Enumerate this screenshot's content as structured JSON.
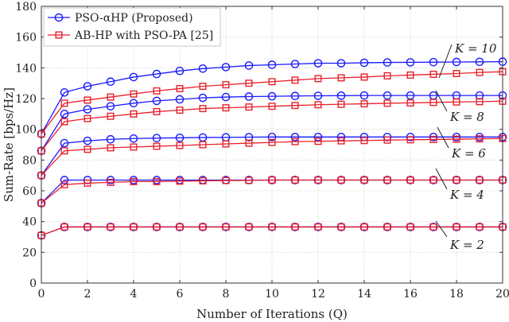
{
  "chart_data": {
    "type": "line",
    "xlabel": "Number of Iterations (Q)",
    "ylabel": "Sum-Rate [bps/Hz]",
    "xlim": [
      0,
      20
    ],
    "ylim": [
      0,
      180
    ],
    "xticks": [
      "0",
      "2",
      "4",
      "6",
      "8",
      "10",
      "12",
      "14",
      "16",
      "18",
      "20"
    ],
    "yticks": [
      "0",
      "20",
      "40",
      "60",
      "80",
      "100",
      "120",
      "140",
      "160",
      "180"
    ],
    "grid": true,
    "legend_position": "top-left",
    "x": [
      0,
      1,
      2,
      3,
      4,
      5,
      6,
      7,
      8,
      9,
      10,
      11,
      12,
      13,
      14,
      15,
      16,
      17,
      18,
      19,
      20
    ],
    "legend": {
      "proposed": "PSO-αHP (Proposed)",
      "baseline": "AB-HP with PSO-PA [25]"
    },
    "series": [
      {
        "name": "PSO-αHP (Proposed)",
        "group": "K = 10",
        "marker": "circle",
        "color": "#1a1aff",
        "values": [
          97,
          124,
          128,
          131,
          134,
          136,
          138,
          139.5,
          140.5,
          141.5,
          142,
          142.5,
          143,
          143,
          143.3,
          143.5,
          143.6,
          143.7,
          143.8,
          143.9,
          144
        ]
      },
      {
        "name": "AB-HP with PSO-PA [25]",
        "group": "K = 10",
        "marker": "square",
        "color": "#e8202a",
        "values": [
          97,
          117,
          119,
          121,
          123,
          125,
          126.5,
          128,
          129,
          130,
          131,
          132,
          133,
          133.5,
          134,
          134.8,
          135.3,
          135.8,
          136.3,
          137,
          137.5
        ]
      },
      {
        "name": "PSO-αHP (Proposed)",
        "group": "K = 8",
        "marker": "circle",
        "color": "#1a1aff",
        "values": [
          86,
          110,
          113,
          115,
          117,
          118.5,
          119.5,
          120.5,
          121,
          121.3,
          121.5,
          121.7,
          121.8,
          121.9,
          122,
          122,
          122,
          122,
          122,
          122,
          122
        ]
      },
      {
        "name": "AB-HP with PSO-PA [25]",
        "group": "K = 8",
        "marker": "square",
        "color": "#e8202a",
        "values": [
          86,
          105,
          107,
          108.5,
          110,
          111.5,
          112.5,
          113.5,
          114,
          114.5,
          115,
          115.5,
          116,
          116.3,
          116.6,
          117,
          117.2,
          117.5,
          117.8,
          118,
          118.3
        ]
      },
      {
        "name": "PSO-αHP (Proposed)",
        "group": "K = 6",
        "marker": "circle",
        "color": "#1a1aff",
        "values": [
          70,
          91,
          92.5,
          93.5,
          94,
          94.3,
          94.5,
          94.7,
          94.8,
          94.9,
          95,
          95,
          95,
          95,
          95,
          95,
          95,
          95,
          95,
          95,
          95
        ]
      },
      {
        "name": "AB-HP with PSO-PA [25]",
        "group": "K = 6",
        "marker": "square",
        "color": "#e8202a",
        "values": [
          70,
          86,
          87,
          88,
          88.5,
          89,
          89.5,
          90,
          90.5,
          91,
          91.5,
          92,
          92.2,
          92.5,
          92.7,
          93,
          93.2,
          93.4,
          93.6,
          93.8,
          94
        ]
      },
      {
        "name": "PSO-αHP (Proposed)",
        "group": "K = 4",
        "marker": "circle",
        "color": "#1a1aff",
        "values": [
          52,
          67,
          67,
          67,
          67,
          67,
          67,
          67,
          67,
          67,
          67,
          67,
          67,
          67,
          67,
          67,
          67,
          67,
          67,
          67,
          67
        ]
      },
      {
        "name": "AB-HP with PSO-PA [25]",
        "group": "K = 4",
        "marker": "square",
        "color": "#e8202a",
        "values": [
          52,
          64,
          65,
          65.5,
          66,
          66,
          66.3,
          66.5,
          66.7,
          66.8,
          67,
          67,
          67,
          67,
          67,
          67,
          67,
          67,
          67,
          67,
          67
        ]
      },
      {
        "name": "PSO-αHP (Proposed)",
        "group": "K = 2",
        "marker": "circle",
        "color": "#1a1aff",
        "values": [
          31,
          36.5,
          36.5,
          36.5,
          36.5,
          36.5,
          36.5,
          36.5,
          36.5,
          36.5,
          36.5,
          36.5,
          36.5,
          36.5,
          36.5,
          36.5,
          36.5,
          36.5,
          36.5,
          36.5,
          36.5
        ]
      },
      {
        "name": "AB-HP with PSO-PA [25]",
        "group": "K = 2",
        "marker": "square",
        "color": "#e8202a",
        "values": [
          31,
          36.5,
          36.5,
          36.5,
          36.5,
          36.5,
          36.5,
          36.5,
          36.5,
          36.5,
          36.5,
          36.5,
          36.5,
          36.5,
          36.5,
          36.5,
          36.5,
          36.5,
          36.5,
          36.5,
          36.5
        ]
      }
    ],
    "annotations": [
      {
        "text": "K = 10",
        "series_value": 144
      },
      {
        "text": "K = 8",
        "series_value": 122
      },
      {
        "text": "K = 6",
        "series_value": 95
      },
      {
        "text": "K = 4",
        "series_value": 67
      },
      {
        "text": "K = 2",
        "series_value": 36.5
      }
    ]
  }
}
